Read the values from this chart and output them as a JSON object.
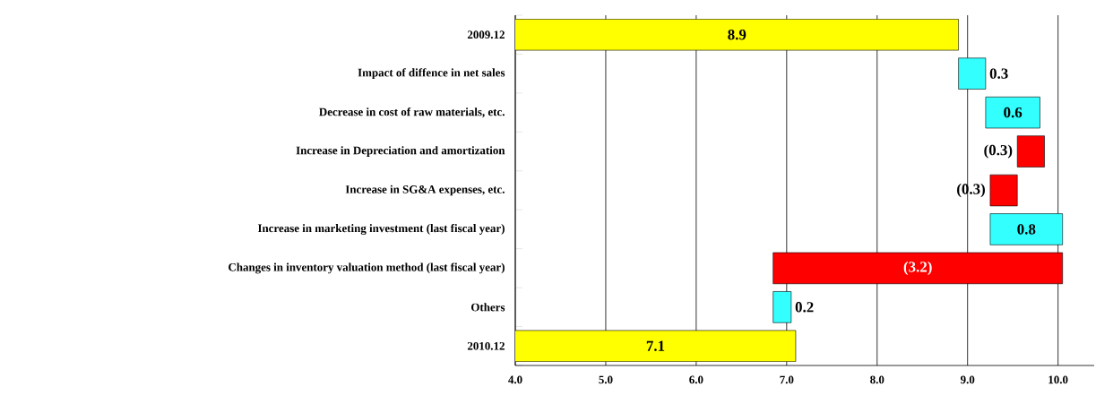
{
  "chart_data": {
    "type": "bar",
    "orientation": "horizontal",
    "categories": [
      "2009.12",
      "Impact of diffence in net sales",
      "Decrease in cost of raw materials, etc.",
      "Increase in Depreciation and amortization",
      "Increase in SG&A expenses, etc.",
      "Increase in marketing investment (last fiscal year)",
      "Changes in inventory valuation method (last fiscal year)",
      "Others",
      "2010.12"
    ],
    "values": [
      8.9,
      0.3,
      0.6,
      -0.3,
      -0.3,
      0.8,
      -3.2,
      0.2,
      7.1
    ],
    "base": [
      null,
      8.9,
      9.2,
      9.85,
      9.55,
      9.25,
      10.05,
      6.85,
      null
    ],
    "colors": [
      "#ffff00",
      "#33ffff",
      "#33ffff",
      "#ff0000",
      "#ff0000",
      "#33ffff",
      "#ff0000",
      "#33ffff",
      "#ffff00"
    ],
    "value_labels": [
      "8.9",
      "0.3",
      "0.6",
      "(0.3)",
      "(0.3)",
      "0.8",
      "(3.2)",
      "0.2",
      "7.1"
    ],
    "xlim": [
      4,
      10.4
    ],
    "xticks": [
      {
        "value": 4,
        "label": "4.0"
      },
      {
        "value": 5,
        "label": "5.0"
      },
      {
        "value": 6,
        "label": "6.0"
      },
      {
        "value": 7,
        "label": "7.0"
      },
      {
        "value": 8,
        "label": "8.0"
      },
      {
        "value": 9,
        "label": "9.0"
      },
      {
        "value": 10,
        "label": "10.0"
      }
    ],
    "grid": "x"
  }
}
